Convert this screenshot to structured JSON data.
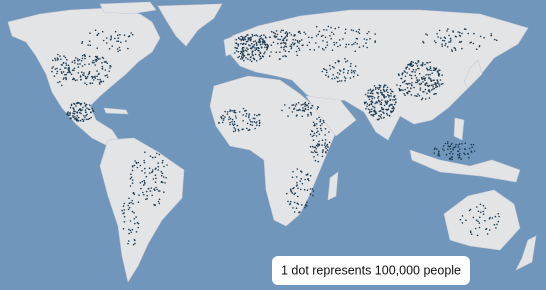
{
  "legend": {
    "text": "1 dot represents 100,000 people"
  }
}
